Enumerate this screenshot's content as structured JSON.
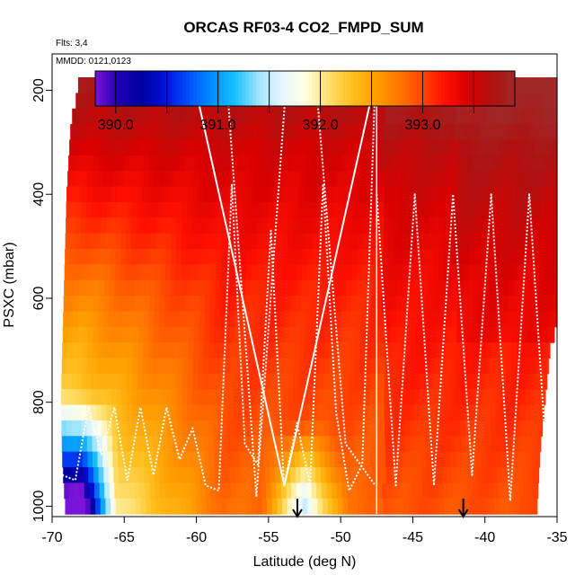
{
  "chart_data": {
    "type": "heatmap",
    "title": "ORCAS RF03-4 CO2_FMPD_SUM",
    "annotation_flights": "Flts: 3,4",
    "annotation_dates": "MMDD: 0121,0123",
    "xlabel": "Latitude (deg N)",
    "ylabel": "PSXC (mbar)",
    "xlim": [
      -70,
      -35
    ],
    "ylim": [
      1020,
      130
    ],
    "x_ticks": [
      -70,
      -65,
      -60,
      -55,
      -50,
      -45,
      -40,
      -35
    ],
    "y_ticks": [
      200,
      400,
      600,
      800,
      1000
    ],
    "colorbar": {
      "range": [
        389.8,
        393.9
      ],
      "ticks": [
        390.0,
        391.0,
        392.0,
        393.0
      ],
      "tick_labels": [
        "390.0",
        "391.0",
        "392.0",
        "393.0"
      ],
      "colors": [
        "#7a14d6",
        "#1e00b4",
        "#0000a0",
        "#0010d8",
        "#0050ff",
        "#0090ff",
        "#18c0ff",
        "#9fe4ff",
        "#e8f6ff",
        "#ffffe0",
        "#ffe070",
        "#ffc020",
        "#ffa000",
        "#ff7800",
        "#ff4800",
        "#ff1000",
        "#d80000",
        "#b01010",
        "#a02828"
      ]
    },
    "arrows_lat": [
      -53,
      -41.5
    ],
    "vertical_line_lat": -47.5,
    "top_boundary_mbar": 175,
    "left_boundary": [
      [
        200,
        -68.2
      ],
      [
        260,
        -68.7
      ],
      [
        400,
        -69.0
      ],
      [
        600,
        -69.2
      ],
      [
        800,
        -69.4
      ],
      [
        910,
        -69.3
      ],
      [
        960,
        -69.2
      ],
      [
        1000,
        -69.1
      ]
    ],
    "right_boundary": [
      [
        175,
        -35.0
      ],
      [
        650,
        -35.0
      ],
      [
        700,
        -35.5
      ],
      [
        900,
        -36.2
      ],
      [
        1010,
        -36.4
      ]
    ],
    "value_field_note": "CO2 (ppm), approx: ~393.6-393.9 near 200-300 mbar; ~393.2-393.5 at 350-600 mbar north of -60; ~392.8-393.2 lower troposphere; 390-391.5 near surface at -69 to -66; ~391.8-392.2 near surface at -55 to -50",
    "flight_track_pressure_sequences": [
      [
        940,
        950,
        810,
        900,
        810,
        950,
        810,
        940,
        810,
        910,
        850,
        960,
        970,
        380,
        880,
        920,
        470,
        960,
        840,
        960,
        380,
        820,
        970,
        920,
        180
      ],
      [
        180,
        960,
        180
      ],
      [
        180,
        980,
        190,
        180,
        880,
        960
      ],
      [
        400,
        960,
        400,
        960,
        400,
        940,
        400,
        990,
        400,
        970
      ]
    ]
  }
}
